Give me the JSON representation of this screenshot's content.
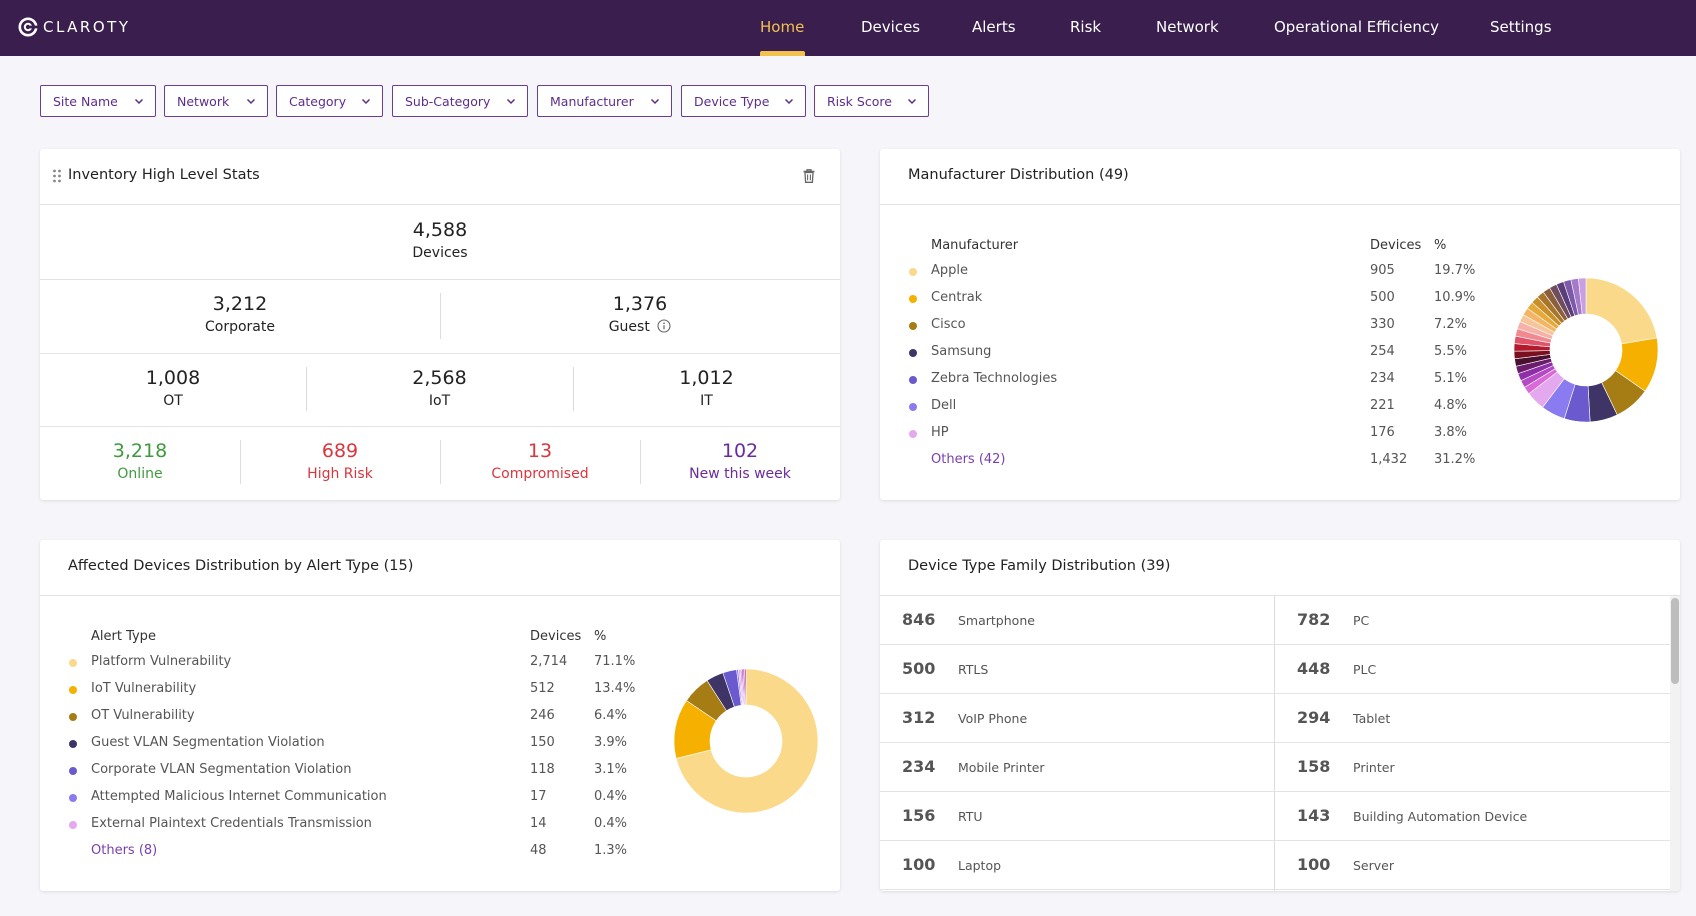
{
  "brand": {
    "name": "CLAROTY"
  },
  "nav": {
    "items": [
      {
        "label": "Home",
        "active": true
      },
      {
        "label": "Devices"
      },
      {
        "label": "Alerts"
      },
      {
        "label": "Risk"
      },
      {
        "label": "Network"
      },
      {
        "label": "Operational Efficiency"
      },
      {
        "label": "Settings"
      }
    ]
  },
  "filters": [
    "Site Name",
    "Network",
    "Category",
    "Sub-Category",
    "Manufacturer",
    "Device Type",
    "Risk Score"
  ],
  "inventory": {
    "title": "Inventory High Level Stats",
    "total": {
      "value": "4,588",
      "label": "Devices"
    },
    "row2": [
      {
        "value": "3,212",
        "label": "Corporate"
      },
      {
        "value": "1,376",
        "label": "Guest"
      }
    ],
    "row3": [
      {
        "value": "1,008",
        "label": "OT"
      },
      {
        "value": "2,568",
        "label": "IoT"
      },
      {
        "value": "1,012",
        "label": "IT"
      }
    ],
    "row4": [
      {
        "value": "3,218",
        "label": "Online",
        "color": "#3f9a3f"
      },
      {
        "value": "689",
        "label": "High Risk",
        "color": "#d9363e"
      },
      {
        "value": "13",
        "label": "Compromised",
        "color": "#d9363e"
      },
      {
        "value": "102",
        "label": "New this week",
        "color": "#6a2c9a"
      }
    ]
  },
  "manufacturer": {
    "title": "Manufacturer Distribution (49)",
    "headers": {
      "name": "Manufacturer",
      "devices": "Devices",
      "pct": "%"
    },
    "rows": [
      {
        "name": "Apple",
        "devices": "905",
        "pct": "19.7%",
        "color": "#fbd98a"
      },
      {
        "name": "Centrak",
        "devices": "500",
        "pct": "10.9%",
        "color": "#f5b000"
      },
      {
        "name": "Cisco",
        "devices": "330",
        "pct": "7.2%",
        "color": "#a67c14"
      },
      {
        "name": "Samsung",
        "devices": "254",
        "pct": "5.5%",
        "color": "#3e3566"
      },
      {
        "name": "Zebra Technologies",
        "devices": "234",
        "pct": "5.1%",
        "color": "#6a5acd"
      },
      {
        "name": "Dell",
        "devices": "221",
        "pct": "4.8%",
        "color": "#8a7cf0"
      },
      {
        "name": "HP",
        "devices": "176",
        "pct": "3.8%",
        "color": "#e4a8ef"
      },
      {
        "name": "Others (42)",
        "devices": "1,432",
        "pct": "31.2%",
        "others": true
      }
    ]
  },
  "alerts": {
    "title": "Affected Devices Distribution by Alert Type (15)",
    "headers": {
      "name": "Alert Type",
      "devices": "Devices",
      "pct": "%"
    },
    "rows": [
      {
        "name": "Platform Vulnerability",
        "devices": "2,714",
        "pct": "71.1%",
        "color": "#fbd98a"
      },
      {
        "name": "IoT Vulnerability",
        "devices": "512",
        "pct": "13.4%",
        "color": "#f5b000"
      },
      {
        "name": "OT Vulnerability",
        "devices": "246",
        "pct": "6.4%",
        "color": "#a67c14"
      },
      {
        "name": "Guest VLAN Segmentation Violation",
        "devices": "150",
        "pct": "3.9%",
        "color": "#3e3566"
      },
      {
        "name": "Corporate VLAN Segmentation Violation",
        "devices": "118",
        "pct": "3.1%",
        "color": "#6a5acd"
      },
      {
        "name": "Attempted Malicious Internet Communication",
        "devices": "17",
        "pct": "0.4%",
        "color": "#8a7cf0"
      },
      {
        "name": "External Plaintext Credentials Transmission",
        "devices": "14",
        "pct": "0.4%",
        "color": "#e4a8ef"
      },
      {
        "name": "Others (8)",
        "devices": "48",
        "pct": "1.3%",
        "others": true
      }
    ]
  },
  "device_types": {
    "title": "Device Type Family Distribution (39)",
    "items": [
      {
        "count": "846",
        "label": "Smartphone"
      },
      {
        "count": "782",
        "label": "PC"
      },
      {
        "count": "500",
        "label": "RTLS"
      },
      {
        "count": "448",
        "label": "PLC"
      },
      {
        "count": "312",
        "label": "VoIP Phone"
      },
      {
        "count": "294",
        "label": "Tablet"
      },
      {
        "count": "234",
        "label": "Mobile Printer"
      },
      {
        "count": "158",
        "label": "Printer"
      },
      {
        "count": "156",
        "label": "RTU"
      },
      {
        "count": "143",
        "label": "Building Automation Device"
      },
      {
        "count": "100",
        "label": "Laptop"
      },
      {
        "count": "100",
        "label": "Server"
      }
    ]
  },
  "chart_data": [
    {
      "type": "pie",
      "categories": [
        "Apple",
        "Centrak",
        "Cisco",
        "Samsung",
        "Zebra Technologies",
        "Dell",
        "HP",
        "Others (42)"
      ],
      "values": [
        19.7,
        10.9,
        7.2,
        5.5,
        5.1,
        4.8,
        3.8,
        31.2
      ],
      "colors": [
        "#fbd98a",
        "#f5b000",
        "#a67c14",
        "#3e3566",
        "#6a5acd",
        "#8a7cf0",
        "#e4a8ef"
      ],
      "others_colors": [
        "#d96ad8",
        "#b54bc2",
        "#8f2fa8",
        "#6b1d6b",
        "#4a1030",
        "#7a0f20",
        "#b31b2d",
        "#e0546a",
        "#f08a90",
        "#f6b2a8",
        "#f7c59a",
        "#f3b565",
        "#e7a93a",
        "#c98f2a",
        "#a8762a",
        "#8a5f3a",
        "#6f4c5e",
        "#5a3f7a",
        "#7d5aa8",
        "#a47ac9",
        "#c6a0e0"
      ],
      "donut": true
    },
    {
      "type": "pie",
      "categories": [
        "Platform Vulnerability",
        "IoT Vulnerability",
        "OT Vulnerability",
        "Guest VLAN Segmentation Violation",
        "Corporate VLAN Segmentation Violation",
        "Attempted Malicious Internet Communication",
        "External Plaintext Credentials Transmission",
        "Others (8)"
      ],
      "values": [
        71.1,
        13.4,
        6.4,
        3.9,
        3.1,
        0.4,
        0.4,
        1.3
      ],
      "colors": [
        "#fbd98a",
        "#f5b000",
        "#a67c14",
        "#3e3566",
        "#6a5acd",
        "#8a7cf0",
        "#e4a8ef"
      ],
      "others_colors": [
        "#d96ad8",
        "#b54bc2",
        "#8f2fa8",
        "#c23a8a"
      ],
      "donut": true
    }
  ]
}
